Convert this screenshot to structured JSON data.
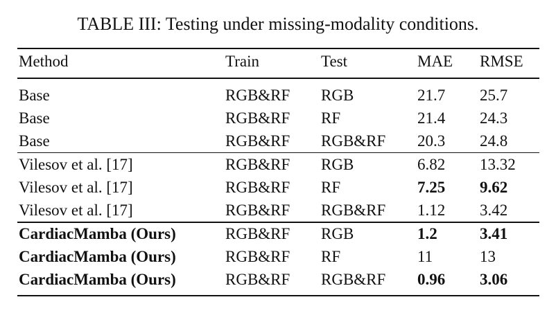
{
  "title": "TABLE III: Testing under missing-modality conditions.",
  "table": {
    "header": [
      "Method",
      "Train",
      "Test",
      "MAE",
      "RMSE"
    ],
    "rows": [
      [
        "Base",
        "RGB&RF",
        "RGB",
        "21.7",
        "25.7"
      ],
      [
        "Base",
        "RGB&RF",
        "RF",
        "21.4",
        "24.3"
      ],
      [
        "Base",
        "RGB&RF",
        "RGB&RF",
        "20.3",
        "24.8"
      ],
      [
        "Vilesov et al. [17]",
        "RGB&RF",
        "RGB",
        "6.82",
        "13.32"
      ],
      [
        "Vilesov et al. [17]",
        "RGB&RF",
        "RF",
        "7.25",
        "9.62"
      ],
      [
        "Vilesov et al. [17]",
        "RGB&RF",
        "RGB&RF",
        "1.12",
        "3.42"
      ],
      [
        "CardiacMamba (Ours)",
        "RGB&RF",
        "RGB",
        "1.2",
        "3.41"
      ],
      [
        "CardiacMamba (Ours)",
        "RGB&RF",
        "RF",
        "11",
        "13"
      ],
      [
        "CardiacMamba (Ours)",
        "RGB&RF",
        "RGB&RF",
        "0.96",
        "3.06"
      ]
    ]
  }
}
